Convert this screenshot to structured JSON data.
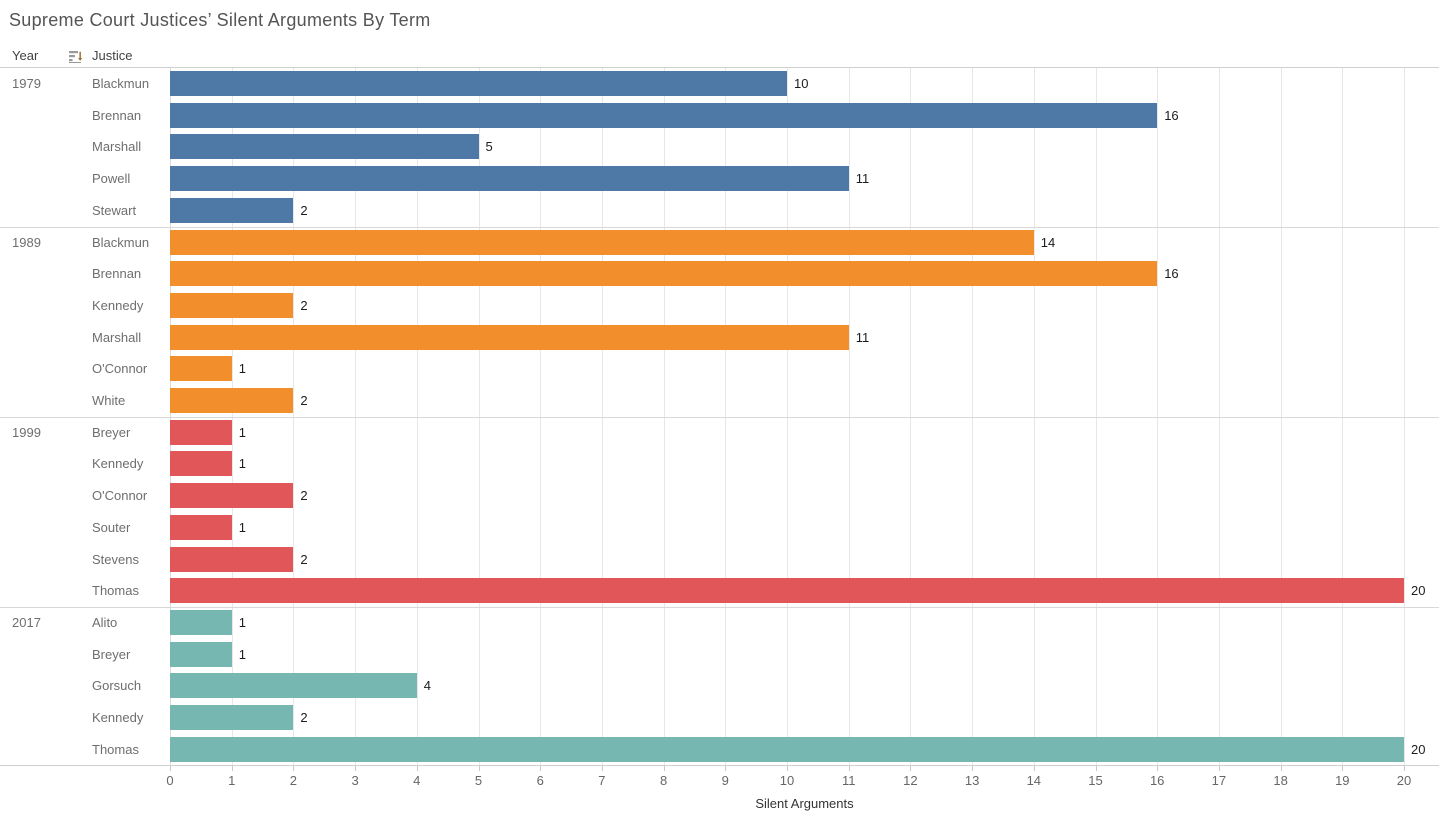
{
  "title": "Supreme Court Justices’ Silent Arguments By Term",
  "columns": {
    "year_header": "Year",
    "justice_header": "Justice",
    "sort_icon": "sort-descending-icon"
  },
  "axis": {
    "label": "Silent Arguments",
    "min": 0,
    "max": 20,
    "ticks": [
      0,
      1,
      2,
      3,
      4,
      5,
      6,
      7,
      8,
      9,
      10,
      11,
      12,
      13,
      14,
      15,
      16,
      17,
      18,
      19,
      20
    ]
  },
  "palette": {
    "1979": "#4e79a7",
    "1989": "#f28e2b",
    "1999": "#e15759",
    "2017": "#76b7b2"
  },
  "chart_data": {
    "type": "bar",
    "orientation": "horizontal",
    "title": "Supreme Court Justices’ Silent Arguments By Term",
    "xlabel": "Silent Arguments",
    "xlim": [
      0,
      20
    ],
    "grid": true,
    "value_labels": true,
    "groups": [
      {
        "year": "1979",
        "color": "#4e79a7",
        "rows": [
          {
            "justice": "Blackmun",
            "value": 10
          },
          {
            "justice": "Brennan",
            "value": 16
          },
          {
            "justice": "Marshall",
            "value": 5
          },
          {
            "justice": "Powell",
            "value": 11
          },
          {
            "justice": "Stewart",
            "value": 2
          }
        ]
      },
      {
        "year": "1989",
        "color": "#f28e2b",
        "rows": [
          {
            "justice": "Blackmun",
            "value": 14
          },
          {
            "justice": "Brennan",
            "value": 16
          },
          {
            "justice": "Kennedy",
            "value": 2
          },
          {
            "justice": "Marshall",
            "value": 11
          },
          {
            "justice": "O'Connor",
            "value": 1
          },
          {
            "justice": "White",
            "value": 2
          }
        ]
      },
      {
        "year": "1999",
        "color": "#e15759",
        "rows": [
          {
            "justice": "Breyer",
            "value": 1
          },
          {
            "justice": "Kennedy",
            "value": 1
          },
          {
            "justice": "O'Connor",
            "value": 2
          },
          {
            "justice": "Souter",
            "value": 1
          },
          {
            "justice": "Stevens",
            "value": 2
          },
          {
            "justice": "Thomas",
            "value": 20
          }
        ]
      },
      {
        "year": "2017",
        "color": "#76b7b2",
        "rows": [
          {
            "justice": "Alito",
            "value": 1
          },
          {
            "justice": "Breyer",
            "value": 1
          },
          {
            "justice": "Gorsuch",
            "value": 4
          },
          {
            "justice": "Kennedy",
            "value": 2
          },
          {
            "justice": "Thomas",
            "value": 20
          }
        ]
      }
    ]
  }
}
